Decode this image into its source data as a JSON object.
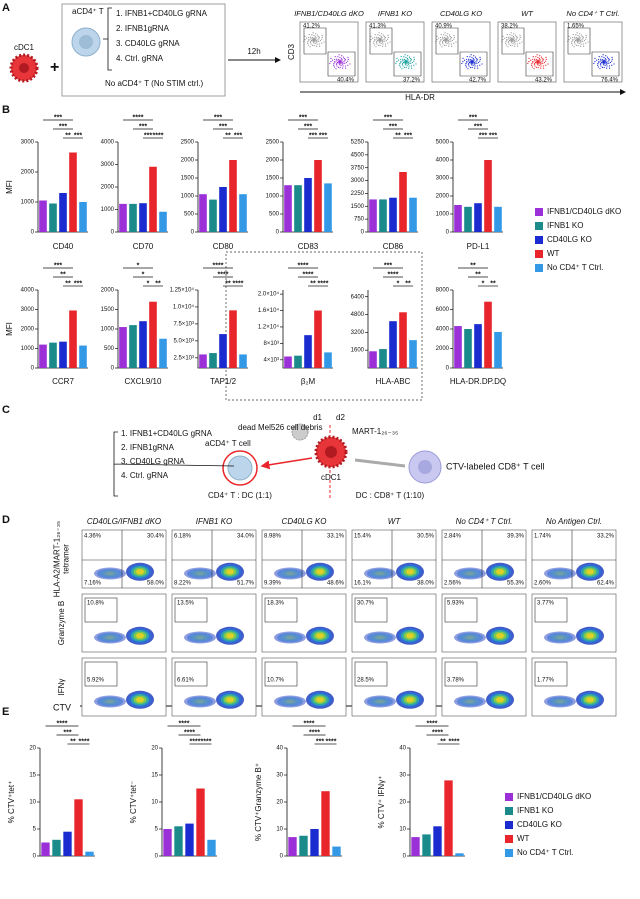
{
  "panel_labels": [
    "A",
    "B",
    "C",
    "D",
    "E"
  ],
  "panel_a": {
    "dc": "cDC1",
    "t_cell": "aCD4⁺ T",
    "conditions": [
      "1. IFNB1+CD40LG gRNA",
      "2. IFNB1gRNA",
      "3. CD40LG gRNA",
      "4. Ctrl. gRNA"
    ],
    "condition_colors": [
      "#9b30d9",
      "#1a9a9a",
      "#1a2bd0",
      "#e8252a"
    ],
    "no_stim": "No aCD4⁺ T (No STIM ctrl.)",
    "time": "12h",
    "y_axis": "CD3",
    "x_axis": "HLA-DR",
    "plots": [
      {
        "title": "IFNB1/CD40LG dKO",
        "gates": [
          "41.2%",
          "40.4%"
        ]
      },
      {
        "title": "IFNB1 KO",
        "gates": [
          "41.3%",
          "37.2%"
        ]
      },
      {
        "title": "CD40LG KO",
        "gates": [
          "40.9%",
          "42.7%"
        ]
      },
      {
        "title": "WT",
        "gates": [
          "38.2%",
          "43.2%"
        ]
      },
      {
        "title": "No CD4⁺ T Ctrl.",
        "gates": [
          "1.65%",
          "76.4%"
        ]
      }
    ]
  },
  "panel_c": {
    "debris": "dead Mel526 cell debris",
    "d1": "d1",
    "d2": "d2",
    "antigen": "MART-1₂₆₋₃₅",
    "t_cell": "aCD4⁺ T cell",
    "dc": "cDC1",
    "cd8": "CTV-labeled CD8⁺ T cell",
    "conditions": [
      "1. IFNB1+CD40LG gRNA",
      "2. IFNB1gRNA",
      "3. CD40LG gRNA",
      "4. Ctrl. gRNA"
    ],
    "ratio_1": "CD4⁺ T : DC (1:1)",
    "ratio_2": "DC : CD8⁺ T (1:10)"
  },
  "panel_d": {
    "columns": [
      "CD40LG/IFNB1 dKO",
      "IFNB1 KO",
      "CD40LG KO",
      "WT",
      "No CD4⁺ T Ctrl.",
      "No Antigen Ctrl."
    ],
    "row_labels": [
      [
        "HLA-A2/MART-1₂₆₋₃₅",
        "tetramer"
      ],
      [
        "Granzyme B"
      ],
      [
        "IFNγ"
      ]
    ],
    "x_axis": "CTV",
    "tetramer": [
      [
        "4.36%",
        "30.4%",
        "7.16%",
        "58.0%"
      ],
      [
        "6.18%",
        "34.0%",
        "8.22%",
        "51.7%"
      ],
      [
        "8.98%",
        "33.1%",
        "9.39%",
        "48.6%"
      ],
      [
        "15.4%",
        "30.5%",
        "16.1%",
        "38.0%"
      ],
      [
        "2.84%",
        "39.3%",
        "2.56%",
        "55.3%"
      ],
      [
        "1.74%",
        "33.2%",
        "2.60%",
        "62.4%"
      ]
    ],
    "granzyme_b": [
      "10.8%",
      "13.5%",
      "18.3%",
      "30.7%",
      "5.93%",
      "3.77%"
    ],
    "ifng": [
      "5.92%",
      "6.61%",
      "10.7%",
      "28.5%",
      "3.78%",
      "1.77%"
    ]
  },
  "chart_data": [
    {
      "type": "bar",
      "title": "CD40",
      "ylabel": "MFI",
      "categories": [
        "IFNB1/CD40LG dKO",
        "IFNB1 KO",
        "CD40LG KO",
        "WT",
        "No CD4⁺ T Ctrl."
      ],
      "colors": [
        "#9b30d9",
        "#1a8a8a",
        "#1a2bd0",
        "#e8252a",
        "#3399e6"
      ],
      "values": [
        1050,
        950,
        1300,
        2650,
        1000
      ],
      "ylim": [
        0,
        3000
      ],
      "yticks": [
        0,
        1000,
        2000,
        3000
      ],
      "significance": [
        "***",
        "***",
        "**",
        "***"
      ]
    },
    {
      "type": "bar",
      "title": "CD70",
      "colors": [
        "#9b30d9",
        "#1a8a8a",
        "#1a2bd0",
        "#e8252a",
        "#3399e6"
      ],
      "values": [
        1250,
        1250,
        1280,
        2900,
        900
      ],
      "ylim": [
        0,
        4000
      ],
      "yticks": [
        0,
        1000,
        2000,
        3000,
        4000
      ],
      "significance": [
        "****",
        "***",
        "***",
        "****"
      ]
    },
    {
      "type": "bar",
      "title": "CD80",
      "colors": [
        "#9b30d9",
        "#1a8a8a",
        "#1a2bd0",
        "#e8252a",
        "#3399e6"
      ],
      "values": [
        1050,
        900,
        1250,
        2000,
        1050
      ],
      "ylim": [
        0,
        2500
      ],
      "yticks": [
        0,
        500,
        1000,
        1500,
        2000,
        2500
      ],
      "significance": [
        "***",
        "***",
        "**",
        "***"
      ]
    },
    {
      "type": "bar",
      "title": "CD83",
      "colors": [
        "#9b30d9",
        "#1a8a8a",
        "#1a2bd0",
        "#e8252a",
        "#3399e6"
      ],
      "values": [
        1300,
        1300,
        1500,
        2000,
        1350
      ],
      "ylim": [
        0,
        2500
      ],
      "yticks": [
        0,
        500,
        1000,
        1500,
        2000,
        2500
      ],
      "significance": [
        "***",
        "***",
        "***",
        "***"
      ]
    },
    {
      "type": "bar",
      "title": "CD86",
      "colors": [
        "#9b30d9",
        "#1a8a8a",
        "#1a2bd0",
        "#e8252a",
        "#3399e6"
      ],
      "values": [
        1900,
        1900,
        2000,
        3500,
        2000
      ],
      "ylim": [
        0,
        5250
      ],
      "yticks": [
        0,
        750,
        1500,
        2250,
        3000,
        3750,
        4500,
        5250
      ],
      "significance": [
        "***",
        "***",
        "**",
        "***"
      ]
    },
    {
      "type": "bar",
      "title": "PD-L1",
      "colors": [
        "#9b30d9",
        "#1a8a8a",
        "#1a2bd0",
        "#e8252a",
        "#3399e6"
      ],
      "values": [
        1500,
        1400,
        1600,
        4000,
        1400
      ],
      "ylim": [
        0,
        5000
      ],
      "yticks": [
        0,
        1000,
        2000,
        3000,
        4000,
        5000
      ],
      "significance": [
        "***",
        "***",
        "***",
        "***"
      ]
    },
    {
      "type": "bar",
      "title": "CCR7",
      "ylabel": "MFI",
      "colors": [
        "#9b30d9",
        "#1a8a8a",
        "#1a2bd0",
        "#e8252a",
        "#3399e6"
      ],
      "values": [
        1200,
        1300,
        1350,
        2950,
        1150
      ],
      "ylim": [
        0,
        4000
      ],
      "yticks": [
        0,
        1000,
        2000,
        3000,
        4000
      ],
      "significance": [
        "***",
        "**",
        "**",
        "***"
      ]
    },
    {
      "type": "bar",
      "title": "CXCL9/10",
      "colors": [
        "#9b30d9",
        "#1a8a8a",
        "#1a2bd0",
        "#e8252a",
        "#3399e6"
      ],
      "values": [
        1050,
        1100,
        1200,
        1700,
        750
      ],
      "ylim": [
        0,
        2000
      ],
      "yticks": [
        0,
        500,
        1000,
        1500,
        2000
      ],
      "significance": [
        "*",
        "*",
        "*",
        "**"
      ]
    },
    {
      "type": "bar",
      "title": "TAP1/2",
      "title_color": "#e8252a",
      "colors": [
        "#9b30d9",
        "#1a8a8a",
        "#1a2bd0",
        "#e8252a",
        "#3399e6"
      ],
      "values": [
        3000,
        3200,
        6000,
        9500,
        3000
      ],
      "ylim": [
        1000,
        12500
      ],
      "yticks": [
        {
          "value": 2500,
          "label": "2.5×10³"
        },
        {
          "value": 5000,
          "label": "5.0×10³"
        },
        {
          "value": 7500,
          "label": "7.5×10³"
        },
        {
          "value": 10000,
          "label": "1.0×10⁴"
        },
        {
          "value": 12500,
          "label": "1.25×10⁴"
        }
      ],
      "significance": [
        "****",
        "****",
        "**",
        "****"
      ]
    },
    {
      "type": "bar",
      "title": "β₂M",
      "title_color": "#e8252a",
      "colors": [
        "#9b30d9",
        "#1a8a8a",
        "#1a2bd0",
        "#e8252a",
        "#3399e6"
      ],
      "values": [
        4800,
        5000,
        10000,
        16000,
        5800
      ],
      "ylim": [
        2000,
        21000
      ],
      "yticks": [
        {
          "value": 4000,
          "label": "4×10³"
        },
        {
          "value": 8000,
          "label": "8×10³"
        },
        {
          "value": 12000,
          "label": "1.2×10⁴"
        },
        {
          "value": 16000,
          "label": "1.6×10⁴"
        },
        {
          "value": 20000,
          "label": "2.0×10⁴"
        }
      ],
      "significance": [
        "****",
        "****",
        "**",
        "****"
      ]
    },
    {
      "type": "bar",
      "title": "HLA-ABC",
      "title_color": "#e8252a",
      "colors": [
        "#9b30d9",
        "#1a8a8a",
        "#1a2bd0",
        "#e8252a",
        "#3399e6"
      ],
      "values": [
        1500,
        1700,
        4200,
        5000,
        2500
      ],
      "ylim": [
        0,
        7000
      ],
      "yticks": [
        1600,
        3200,
        4800,
        6400
      ],
      "significance": [
        "***",
        "****",
        "*",
        "**"
      ]
    },
    {
      "type": "bar",
      "title": "HLA-DR.DP.DQ",
      "colors": [
        "#9b30d9",
        "#1a8a8a",
        "#1a2bd0",
        "#e8252a",
        "#3399e6"
      ],
      "values": [
        4300,
        4000,
        4500,
        6800,
        3700
      ],
      "ylim": [
        0,
        8000
      ],
      "yticks": [
        0,
        2000,
        4000,
        6000,
        8000
      ],
      "significance": [
        "**",
        "**",
        "*",
        "**"
      ]
    },
    {
      "type": "bar",
      "ylabel": "% CTV⁺tet⁺",
      "categories": [
        "IFNB1/CD40LG dKO",
        "IFNB1 KO",
        "CD40LG KO",
        "WT",
        "No CD4⁺ T Ctrl."
      ],
      "colors": [
        "#9b30d9",
        "#1a8a8a",
        "#1a2bd0",
        "#e8252a",
        "#3399e6"
      ],
      "values": [
        2.5,
        3,
        4.5,
        10.5,
        0.8
      ],
      "ylim": [
        0,
        20
      ],
      "yticks": [
        0,
        5,
        10,
        15,
        20
      ],
      "significance": [
        "****",
        "***",
        "**",
        "****"
      ]
    },
    {
      "type": "bar",
      "ylabel": "% CTV⁺tet⁻",
      "colors": [
        "#9b30d9",
        "#1a8a8a",
        "#1a2bd0",
        "#e8252a",
        "#3399e6"
      ],
      "values": [
        5,
        5.5,
        6,
        12.5,
        3
      ],
      "ylim": [
        0,
        20
      ],
      "yticks": [
        0,
        5,
        10,
        15,
        20
      ],
      "significance": [
        "****",
        "****",
        "****",
        "****"
      ]
    },
    {
      "type": "bar",
      "ylabel": "% CTV⁺Granzyme B⁺",
      "colors": [
        "#9b30d9",
        "#1a8a8a",
        "#1a2bd0",
        "#e8252a",
        "#3399e6"
      ],
      "values": [
        7,
        7.5,
        10,
        24,
        3.5
      ],
      "ylim": [
        0,
        40
      ],
      "yticks": [
        0,
        10,
        20,
        30,
        40
      ],
      "significance": [
        "****",
        "****",
        "***",
        "****"
      ]
    },
    {
      "type": "bar",
      "ylabel": "% CTV⁺ IFNγ⁺",
      "colors": [
        "#9b30d9",
        "#1a8a8a",
        "#1a2bd0",
        "#e8252a",
        "#3399e6"
      ],
      "values": [
        7,
        8,
        11,
        28,
        1
      ],
      "ylim": [
        0,
        40
      ],
      "yticks": [
        0,
        10,
        20,
        30,
        40
      ],
      "significance": [
        "****",
        "****",
        "**",
        "****"
      ]
    }
  ]
}
